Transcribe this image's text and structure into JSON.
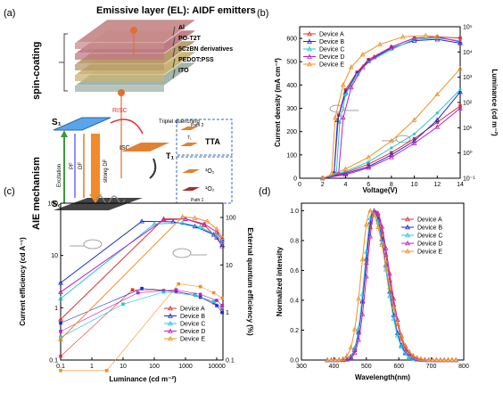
{
  "panels": {
    "a": {
      "label": "(a)",
      "title": "Emissive layer (EL): AIDF emitters",
      "side_top": "spin-coating",
      "side_bottom": "AIE mechanism",
      "layers": [
        "Al",
        "PO-T2T",
        "5CzBN derivatives",
        "PEDOT:PSS",
        "ITO"
      ],
      "layer_colors": [
        "#c88c8c",
        "#c07a84",
        "#b89a6a",
        "#c9b472",
        "#9fb2a6"
      ],
      "mechanism": {
        "s1": "S₁",
        "s0": "S₀",
        "t1": "T₁",
        "risc": "RISC",
        "isc": "ISC",
        "triplet": "Triplet quenching",
        "excitation": "Excitation",
        "pf": "PF",
        "df": "DF",
        "strong_df": "strong DF",
        "path1": "Path 1",
        "path2": "Path 2",
        "tta": "TTA",
        "o2_3": "³O₂",
        "o2_1": "¹O₂",
        "t1_path": "T₁"
      }
    },
    "b": {
      "label": "(b)"
    },
    "c": {
      "label": "(c)"
    },
    "d": {
      "label": "(d)"
    }
  },
  "colors": {
    "A": "#e03030",
    "B": "#1a2bd6",
    "C": "#22c8d8",
    "D": "#c020c0",
    "E": "#f09020"
  },
  "chart_data": [
    {
      "id": "b",
      "type": "line",
      "xlabel": "Voltage(V)",
      "ylabel": "Current density (mA cm⁻²)",
      "y2label": "Luminance (cd m⁻²)",
      "xlim": [
        0,
        14
      ],
      "ylim": [
        0,
        650
      ],
      "y2lim_log10": [
        -1,
        5
      ],
      "y2scale": "log",
      "xticks": [
        0,
        2,
        4,
        6,
        8,
        10,
        12,
        14
      ],
      "yticks": [
        0,
        100,
        200,
        300,
        400,
        500,
        600
      ],
      "y2ticks": [
        "10⁻¹",
        "10⁰",
        "10¹",
        "10²",
        "10³",
        "10⁴",
        "10⁵"
      ],
      "legend": "top-left",
      "series": [
        {
          "name": "Device A",
          "color_key": "A",
          "j": [
            [
              2,
              0
            ],
            [
              4,
              25
            ],
            [
              6,
              60
            ],
            [
              8,
              110
            ],
            [
              10,
              170
            ],
            [
              12,
              240
            ],
            [
              14,
              310
            ]
          ],
          "L": [
            [
              3,
              -0.8
            ],
            [
              3.4,
              1.5
            ],
            [
              4,
              2.5
            ],
            [
              5,
              3.2
            ],
            [
              6,
              3.7
            ],
            [
              8,
              4.2
            ],
            [
              10,
              4.55
            ],
            [
              12,
              4.6
            ],
            [
              14,
              4.55
            ]
          ]
        },
        {
          "name": "Device B",
          "color_key": "B",
          "j": [
            [
              2,
              0
            ],
            [
              4,
              20
            ],
            [
              6,
              50
            ],
            [
              8,
              100
            ],
            [
              10,
              160
            ],
            [
              12,
              250
            ],
            [
              14,
              370
            ]
          ],
          "L": [
            [
              3,
              -0.8
            ],
            [
              3.3,
              1.3
            ],
            [
              4,
              2.4
            ],
            [
              5,
              3.15
            ],
            [
              6,
              3.65
            ],
            [
              8,
              4.15
            ],
            [
              10,
              4.45
            ],
            [
              12,
              4.5
            ],
            [
              14,
              4.35
            ]
          ]
        },
        {
          "name": "Device C",
          "color_key": "C",
          "j": [
            [
              2,
              0
            ],
            [
              4,
              30
            ],
            [
              6,
              70
            ],
            [
              8,
              130
            ],
            [
              10,
              190
            ],
            [
              12,
              280
            ],
            [
              14,
              380
            ]
          ],
          "L": [
            [
              3.2,
              -0.8
            ],
            [
              3.5,
              1.2
            ],
            [
              4,
              2.3
            ],
            [
              5,
              3.1
            ],
            [
              6,
              3.6
            ],
            [
              8,
              4.1
            ],
            [
              10,
              4.5
            ],
            [
              12,
              4.55
            ],
            [
              14,
              4.45
            ]
          ]
        },
        {
          "name": "Device D",
          "color_key": "D",
          "j": [
            [
              2,
              0
            ],
            [
              4,
              15
            ],
            [
              6,
              45
            ],
            [
              8,
              90
            ],
            [
              10,
              150
            ],
            [
              12,
              220
            ],
            [
              14,
              300
            ]
          ],
          "L": [
            [
              3.4,
              -0.8
            ],
            [
              3.8,
              1.4
            ],
            [
              4.5,
              2.6
            ],
            [
              5.5,
              3.4
            ],
            [
              6.5,
              3.8
            ],
            [
              8,
              4.2
            ],
            [
              10,
              4.55
            ],
            [
              12,
              4.6
            ],
            [
              14,
              4.4
            ]
          ]
        },
        {
          "name": "Device E",
          "color_key": "E",
          "j": [
            [
              2,
              0
            ],
            [
              4,
              40
            ],
            [
              6,
              90
            ],
            [
              8,
              160
            ],
            [
              10,
              250
            ],
            [
              12,
              360
            ],
            [
              14,
              470
            ]
          ],
          "L": [
            [
              2.8,
              -0.8
            ],
            [
              3.1,
              1.4
            ],
            [
              3.8,
              2.7
            ],
            [
              4.5,
              3.4
            ],
            [
              5.5,
              3.9
            ],
            [
              7,
              4.3
            ],
            [
              9,
              4.6
            ],
            [
              11,
              4.65
            ],
            [
              12,
              4.6
            ]
          ]
        }
      ]
    },
    {
      "id": "c",
      "type": "line",
      "xlabel": "Luminance (cd m⁻²)",
      "ylabel": "Current efficiency (cd A⁻¹)",
      "y2label": "External quantum efficiency (%)",
      "xscale": "log",
      "yscale": "log",
      "xlim_log10": [
        -1,
        4.2
      ],
      "ylim_log10": [
        -1,
        2
      ],
      "y2lim_log10": [
        -1,
        2.3
      ],
      "xticks": [
        "0.1",
        "1",
        "10",
        "100",
        "1000",
        "10000"
      ],
      "yticks": [
        "0.1",
        "1",
        "10",
        "100"
      ],
      "y2ticks": [
        "0.1",
        "1",
        "10",
        "100"
      ],
      "legend": "bottom-right",
      "series": [
        {
          "name": "Device A",
          "color_key": "A",
          "ce": [
            [
              0.1,
              0.6
            ],
            [
              200,
              50
            ],
            [
              1000,
              50
            ],
            [
              4000,
              38
            ],
            [
              10000,
              22
            ],
            [
              15000,
              15
            ]
          ],
          "eqe": [
            [
              0.1,
              0.12
            ],
            [
              20,
              3.0
            ],
            [
              200,
              2.9
            ],
            [
              2000,
              2.4
            ],
            [
              8000,
              1.6
            ],
            [
              15000,
              1.2
            ]
          ]
        },
        {
          "name": "Device B",
          "color_key": "B",
          "ce": [
            [
              0.1,
              3.0
            ],
            [
              40,
              45
            ],
            [
              400,
              44
            ],
            [
              2000,
              36
            ],
            [
              8000,
              25
            ],
            [
              15000,
              16
            ]
          ],
          "eqe": [
            [
              0.1,
              0.6
            ],
            [
              40,
              3.2
            ],
            [
              500,
              2.8
            ],
            [
              3000,
              2.1
            ],
            [
              10000,
              1.4
            ],
            [
              15000,
              1.0
            ]
          ]
        },
        {
          "name": "Device C",
          "color_key": "C",
          "ce": [
            [
              0.1,
              1.5
            ],
            [
              100,
              40
            ],
            [
              800,
              42
            ],
            [
              3000,
              35
            ],
            [
              10000,
              24
            ],
            [
              15000,
              18
            ]
          ],
          "eqe": [
            [
              0.1,
              0.3
            ],
            [
              10,
              1.5
            ],
            [
              200,
              2.7
            ],
            [
              2000,
              2.3
            ],
            [
              8000,
              1.7
            ],
            [
              15000,
              1.3
            ]
          ]
        },
        {
          "name": "Device D",
          "color_key": "D",
          "ce": [
            [
              0.1,
              2.0
            ],
            [
              200,
              48
            ],
            [
              1000,
              50
            ],
            [
              4000,
              40
            ],
            [
              10000,
              28
            ],
            [
              15000,
              20
            ]
          ],
          "eqe": [
            [
              0.1,
              0.4
            ],
            [
              30,
              2.6
            ],
            [
              500,
              3.0
            ],
            [
              3000,
              2.4
            ],
            [
              10000,
              1.8
            ],
            [
              15000,
              1.4
            ]
          ]
        },
        {
          "name": "Device E",
          "color_key": "E",
          "ce": [
            [
              0.1,
              0.25
            ],
            [
              800,
              55
            ],
            [
              2000,
              52
            ],
            [
              5000,
              45
            ],
            [
              10000,
              32
            ],
            [
              15000,
              22
            ]
          ],
          "eqe": [
            [
              0.1,
              0.06
            ],
            [
              3,
              0.06
            ],
            [
              600,
              4.0
            ],
            [
              3000,
              3.5
            ],
            [
              8000,
              2.6
            ],
            [
              15000,
              2.0
            ]
          ]
        }
      ]
    },
    {
      "id": "d",
      "type": "line",
      "xlabel": "Wavelength(nm)",
      "ylabel": "Normalized intensity",
      "xlim": [
        300,
        800
      ],
      "ylim": [
        0,
        1.05
      ],
      "xticks": [
        300,
        400,
        500,
        600,
        700,
        800
      ],
      "yticks": [
        0.0,
        0.2,
        0.4,
        0.6,
        0.8,
        1.0
      ],
      "legend": "top-right",
      "series": [
        {
          "name": "Device A",
          "color_key": "A",
          "peak": 525,
          "sl": 27,
          "sr": 42
        },
        {
          "name": "Device B",
          "color_key": "B",
          "peak": 522,
          "sl": 25,
          "sr": 40
        },
        {
          "name": "Device C",
          "color_key": "C",
          "peak": 520,
          "sl": 25,
          "sr": 40
        },
        {
          "name": "Device D",
          "color_key": "D",
          "peak": 528,
          "sl": 26,
          "sr": 42
        },
        {
          "name": "Device E",
          "color_key": "E",
          "peak": 512,
          "sl": 27,
          "sr": 50
        }
      ]
    }
  ]
}
